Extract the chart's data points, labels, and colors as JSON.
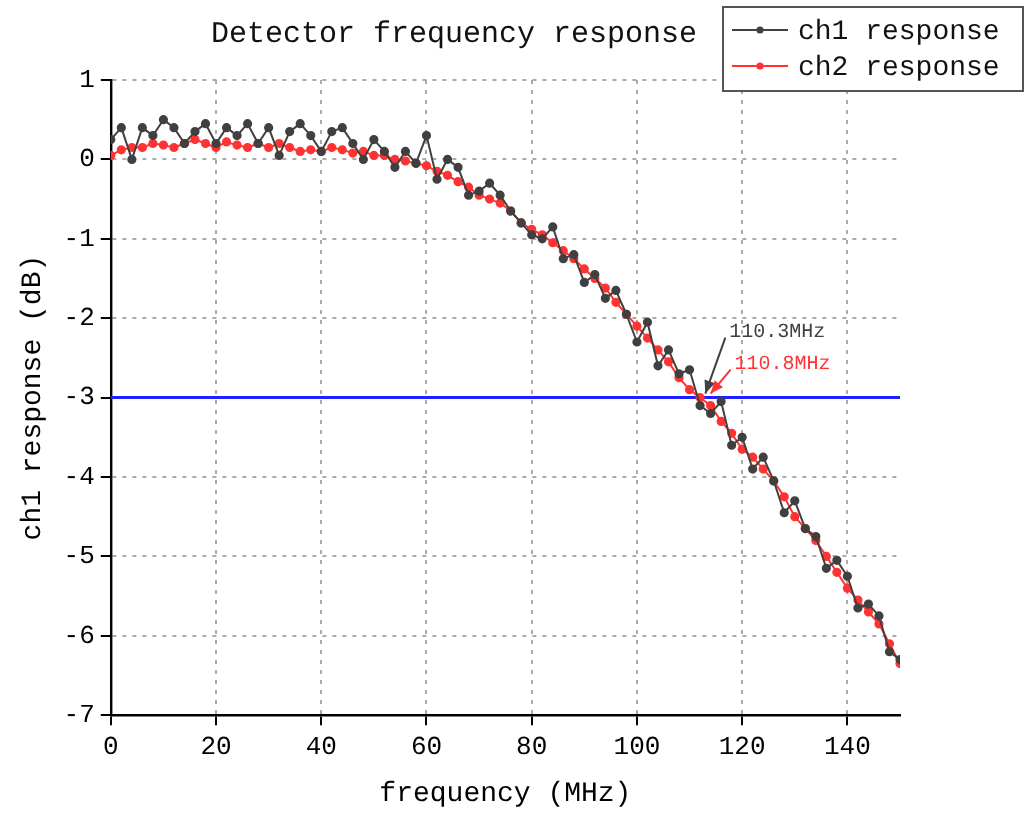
{
  "chart_data": {
    "type": "line",
    "title": "Detector frequency response",
    "xlabel": "frequency (MHz)",
    "ylabel": "ch1 response (dB)",
    "x": [
      0,
      2,
      4,
      6,
      8,
      10,
      12,
      14,
      16,
      18,
      20,
      22,
      24,
      26,
      28,
      30,
      32,
      34,
      36,
      38,
      40,
      42,
      44,
      46,
      48,
      50,
      52,
      54,
      56,
      58,
      60,
      62,
      64,
      66,
      68,
      70,
      72,
      74,
      76,
      78,
      80,
      82,
      84,
      86,
      88,
      90,
      92,
      94,
      96,
      98,
      100,
      102,
      104,
      106,
      108,
      110,
      112,
      114,
      116,
      118,
      120,
      122,
      124,
      126,
      128,
      130,
      132,
      134,
      136,
      138,
      140,
      142,
      144,
      146,
      148,
      150
    ],
    "series": [
      {
        "name": "ch1 response",
        "color": "#404040",
        "values": [
          0.25,
          0.4,
          0.0,
          0.4,
          0.3,
          0.5,
          0.4,
          0.2,
          0.35,
          0.45,
          0.2,
          0.4,
          0.3,
          0.45,
          0.2,
          0.4,
          0.05,
          0.35,
          0.45,
          0.3,
          0.1,
          0.35,
          0.4,
          0.2,
          0.0,
          0.25,
          0.1,
          -0.1,
          0.1,
          -0.05,
          0.3,
          -0.25,
          0.0,
          -0.1,
          -0.45,
          -0.4,
          -0.3,
          -0.45,
          -0.65,
          -0.8,
          -0.95,
          -1.0,
          -0.85,
          -1.25,
          -1.2,
          -1.55,
          -1.45,
          -1.75,
          -1.65,
          -1.95,
          -2.3,
          -2.05,
          -2.6,
          -2.4,
          -2.7,
          -2.65,
          -3.1,
          -3.2,
          -3.05,
          -3.6,
          -3.5,
          -3.9,
          -3.75,
          -4.05,
          -4.45,
          -4.3,
          -4.65,
          -4.75,
          -5.15,
          -5.05,
          -5.25,
          -5.65,
          -5.6,
          -5.75,
          -6.2,
          -6.3
        ]
      },
      {
        "name": "ch2 response",
        "color": "#ff3333",
        "values": [
          0.05,
          0.12,
          0.15,
          0.15,
          0.2,
          0.18,
          0.15,
          0.2,
          0.25,
          0.2,
          0.15,
          0.22,
          0.18,
          0.15,
          0.2,
          0.15,
          0.2,
          0.15,
          0.1,
          0.12,
          0.1,
          0.15,
          0.12,
          0.08,
          0.1,
          0.05,
          0.05,
          0.0,
          -0.02,
          -0.05,
          -0.08,
          -0.15,
          -0.2,
          -0.28,
          -0.35,
          -0.45,
          -0.5,
          -0.55,
          -0.65,
          -0.8,
          -0.88,
          -0.95,
          -1.05,
          -1.15,
          -1.25,
          -1.38,
          -1.5,
          -1.62,
          -1.8,
          -1.95,
          -2.1,
          -2.25,
          -2.4,
          -2.55,
          -2.75,
          -2.9,
          -3.0,
          -3.1,
          -3.3,
          -3.45,
          -3.65,
          -3.75,
          -3.9,
          -4.05,
          -4.25,
          -4.5,
          -4.65,
          -4.8,
          -5.0,
          -5.2,
          -5.4,
          -5.55,
          -5.7,
          -5.85,
          -6.1,
          -6.35
        ]
      }
    ],
    "xlim": [
      0,
      150
    ],
    "xticks": [
      0,
      20,
      40,
      60,
      80,
      100,
      120,
      140
    ],
    "ylim": [
      -7,
      1
    ],
    "yticks": [
      -7,
      -6,
      -5,
      -4,
      -3,
      -2,
      -1,
      0,
      1
    ],
    "ref_lines": [
      {
        "axis": "y",
        "value": -3,
        "color": "#2020ff"
      }
    ],
    "annotations": [
      {
        "text": "110.3MHz",
        "x": 113,
        "y": -3
      },
      {
        "text": "110.8MHz",
        "x": 114,
        "y": -3
      }
    ],
    "grid": true,
    "legend": "top right",
    "marker": "circle",
    "line_style": "solid"
  }
}
